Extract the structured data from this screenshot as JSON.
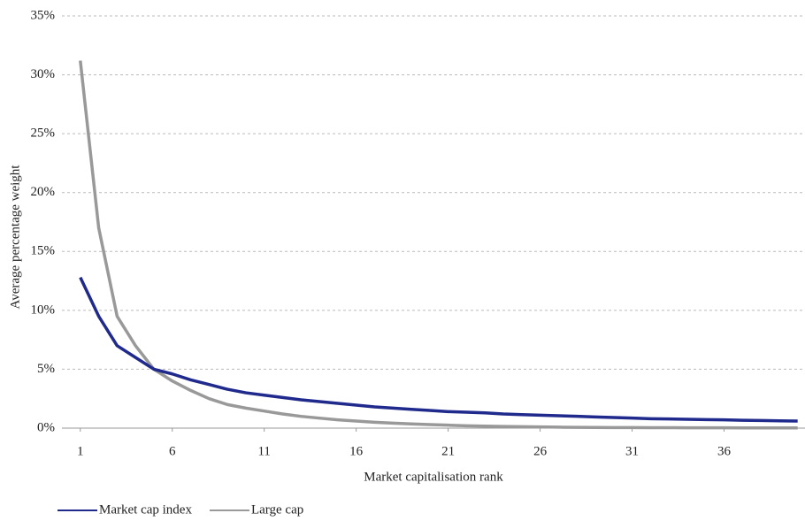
{
  "chart_data": {
    "type": "line",
    "x_label": "Market capitalisation  rank",
    "y_label": "Average percentage weight",
    "x": [
      1,
      2,
      3,
      4,
      5,
      6,
      7,
      8,
      9,
      10,
      11,
      12,
      13,
      14,
      15,
      16,
      17,
      18,
      19,
      20,
      21,
      22,
      23,
      24,
      25,
      26,
      27,
      28,
      29,
      30,
      31,
      32,
      33,
      34,
      35,
      36,
      37,
      38,
      39,
      40
    ],
    "series": [
      {
        "name": "Market cap index",
        "color": "#1f2a8c",
        "values": [
          12.8,
          9.5,
          7.0,
          6.0,
          5.0,
          4.6,
          4.1,
          3.7,
          3.3,
          3.0,
          2.8,
          2.6,
          2.4,
          2.25,
          2.1,
          1.95,
          1.8,
          1.7,
          1.6,
          1.5,
          1.4,
          1.35,
          1.3,
          1.2,
          1.15,
          1.1,
          1.05,
          1.0,
          0.95,
          0.9,
          0.85,
          0.8,
          0.78,
          0.75,
          0.72,
          0.7,
          0.67,
          0.65,
          0.62,
          0.6
        ]
      },
      {
        "name": "Large cap",
        "color": "#999999",
        "values": [
          31.2,
          17.0,
          9.5,
          7.0,
          5.0,
          4.0,
          3.2,
          2.5,
          2.0,
          1.7,
          1.45,
          1.2,
          1.0,
          0.85,
          0.7,
          0.6,
          0.5,
          0.42,
          0.36,
          0.3,
          0.25,
          0.2,
          0.17,
          0.14,
          0.12,
          0.1,
          0.08,
          0.07,
          0.06,
          0.05,
          0.05,
          0.04,
          0.04,
          0.03,
          0.03,
          0.03,
          0.02,
          0.02,
          0.02,
          0.02
        ]
      }
    ],
    "xlim": [
      0,
      40.4
    ],
    "xticks": [
      1,
      6,
      11,
      16,
      21,
      26,
      31,
      36
    ],
    "ylim": [
      0,
      35
    ],
    "yticks": [
      {
        "value": 0,
        "label": "0%"
      },
      {
        "value": 5,
        "label": "5%"
      },
      {
        "value": 10,
        "label": "10%"
      },
      {
        "value": 15,
        "label": "15%"
      },
      {
        "value": 20,
        "label": "20%"
      },
      {
        "value": 25,
        "label": "25%"
      },
      {
        "value": 30,
        "label": "30%"
      },
      {
        "value": 35,
        "label": "35%"
      }
    ],
    "grid": true,
    "legend": "bottom-left"
  }
}
